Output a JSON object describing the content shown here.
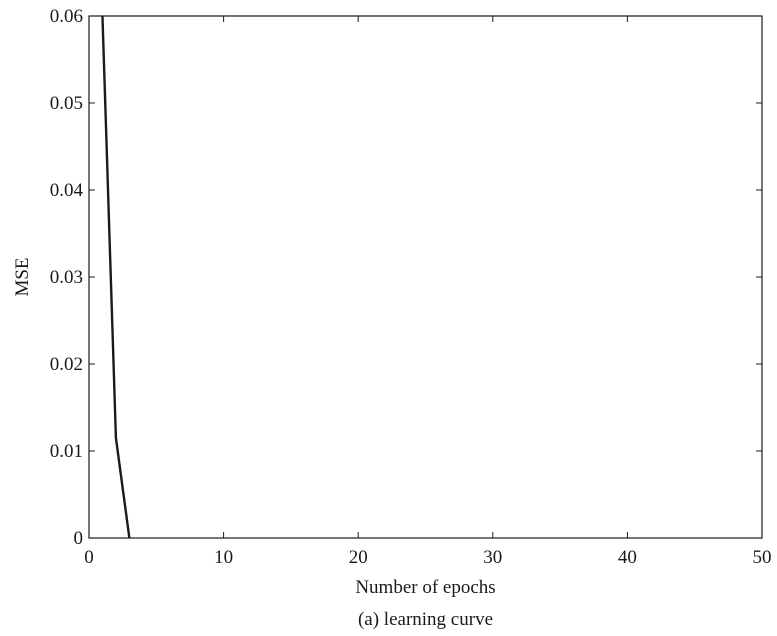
{
  "chart_data": {
    "type": "line",
    "caption": "(a) learning curve",
    "xlabel": "Number of epochs",
    "ylabel": "MSE",
    "xlim": [
      0,
      50
    ],
    "ylim": [
      0,
      0.06
    ],
    "grid": false,
    "x_ticks": [
      "0",
      "10",
      "20",
      "30",
      "40",
      "50"
    ],
    "y_ticks": [
      "0",
      "0.01",
      "0.02",
      "0.03",
      "0.04",
      "0.05",
      "0.06"
    ],
    "x_tick_values": [
      0,
      10,
      20,
      30,
      40,
      50
    ],
    "y_tick_values": [
      0,
      0.01,
      0.02,
      0.03,
      0.04,
      0.05,
      0.06
    ],
    "series": [
      {
        "color": "#1a1a1a",
        "x": [
          1,
          2,
          3
        ],
        "y": [
          0.06,
          0.0115,
          0
        ]
      }
    ]
  }
}
